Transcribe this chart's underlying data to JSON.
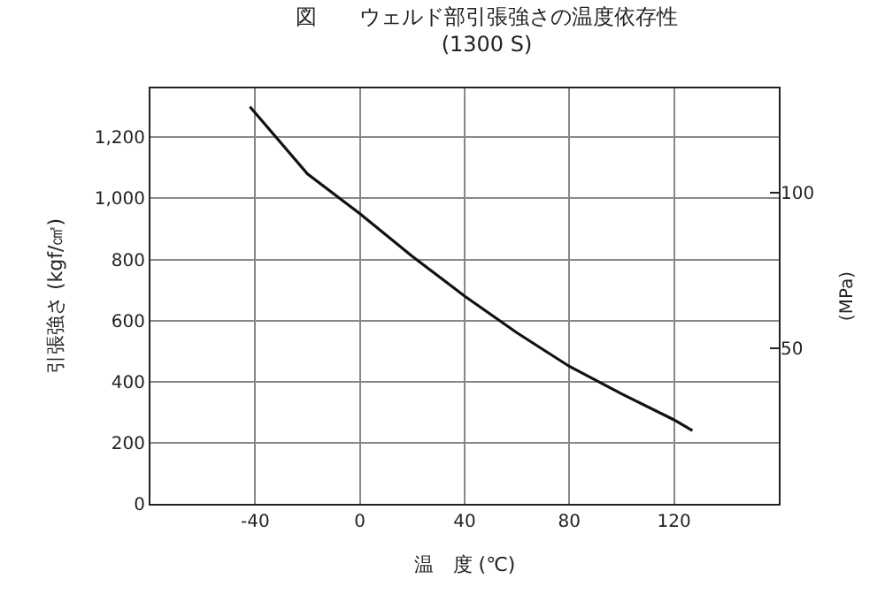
{
  "chart_data": {
    "type": "line",
    "title": "図　　ウェルド部引張強さの温度依存性",
    "subtitle": "(1300 S)",
    "xlabel": "温　度 (℃)",
    "ylabel": "引張強さ (kgf/㎠)",
    "y2label": "(MPa)",
    "x": [
      -42,
      -20,
      0,
      20,
      40,
      60,
      80,
      100,
      120,
      127
    ],
    "series": [
      {
        "color": "#111111",
        "values": [
          1300,
          1080,
          950,
          810,
          680,
          560,
          450,
          360,
          275,
          240
        ]
      }
    ],
    "xlim": [
      -80,
      160
    ],
    "xticks": [
      -40,
      0,
      40,
      80,
      120
    ],
    "ylim": [
      0,
      1360
    ],
    "yticks": [
      0,
      200,
      400,
      600,
      800,
      {
        "value": 1000,
        "label": "1,000"
      },
      {
        "value": 1200,
        "label": "1,200"
      }
    ],
    "y2lim": [
      0,
      133.4
    ],
    "y2ticks": [
      50,
      100
    ],
    "grid": true,
    "marker": "none",
    "line_style": "solid"
  }
}
